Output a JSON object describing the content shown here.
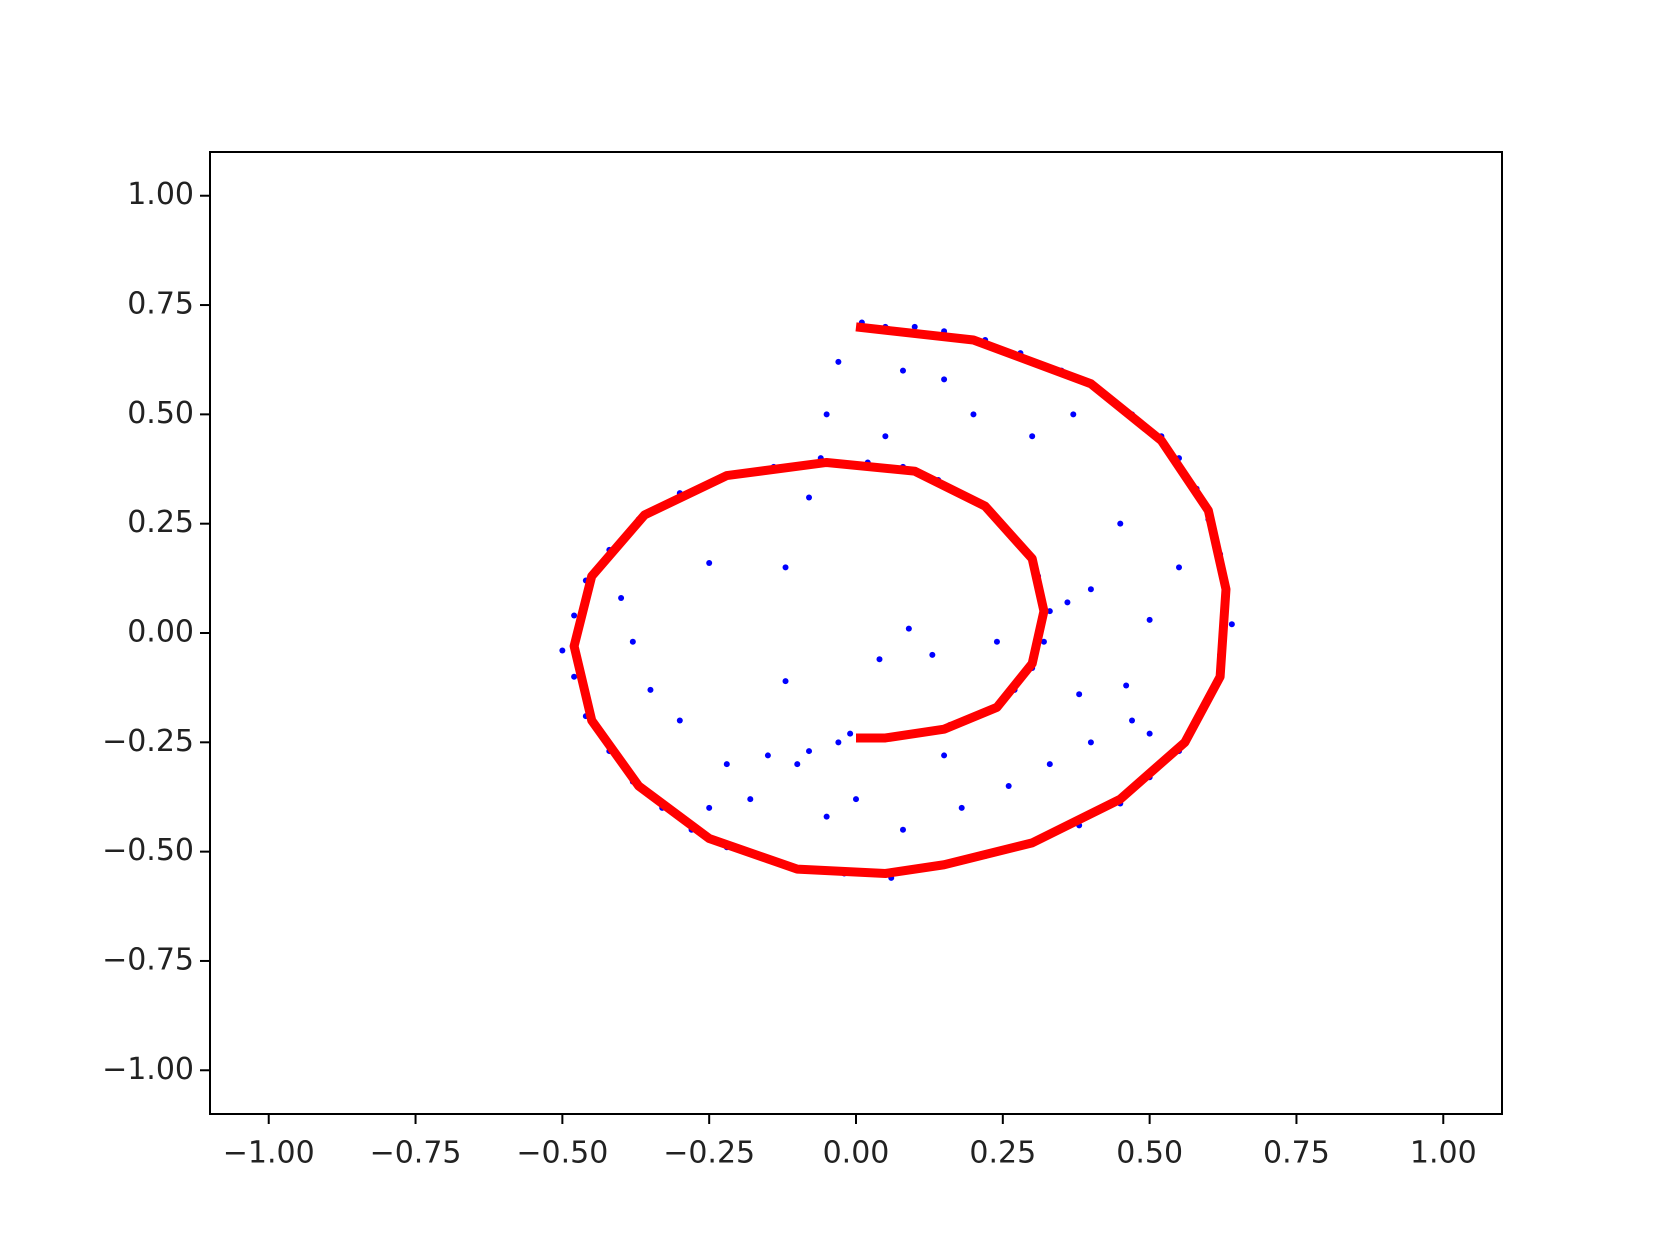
{
  "chart_data": {
    "type": "scatter",
    "xlim": [
      -1.1,
      1.1
    ],
    "ylim": [
      -1.1,
      1.1
    ],
    "xticks": [
      {
        "value": -1,
        "label": "−1.00"
      },
      {
        "value": -0.75,
        "label": "−0.75"
      },
      {
        "value": -0.5,
        "label": "−0.50"
      },
      {
        "value": -0.25,
        "label": "−0.25"
      },
      {
        "value": 0,
        "label": "0.00"
      },
      {
        "value": 0.25,
        "label": "0.25"
      },
      {
        "value": 0.5,
        "label": "0.50"
      },
      {
        "value": 0.75,
        "label": "0.75"
      },
      {
        "value": 1,
        "label": "1.00"
      }
    ],
    "yticks": [
      {
        "value": -1,
        "label": "−1.00"
      },
      {
        "value": -0.75,
        "label": "−0.75"
      },
      {
        "value": -0.5,
        "label": "−0.50"
      },
      {
        "value": -0.25,
        "label": "−0.25"
      },
      {
        "value": 0,
        "label": "0.00"
      },
      {
        "value": 0.25,
        "label": "0.25"
      },
      {
        "value": 0.5,
        "label": "0.50"
      },
      {
        "value": 0.75,
        "label": "0.75"
      },
      {
        "value": 1,
        "label": "1.00"
      }
    ],
    "series": [
      {
        "type": "scatter",
        "color": "#0000ff",
        "x": [
          0.01,
          0.05,
          0.1,
          0.15,
          0.22,
          0.28,
          0.35,
          0.42,
          0.47,
          0.52,
          0.55,
          0.58,
          0.6,
          0.62,
          0.63,
          0.64,
          0.62,
          0.61,
          0.58,
          0.55,
          0.5,
          0.45,
          0.38,
          0.3,
          0.22,
          0.14,
          0.06,
          -0.02,
          -0.08,
          -0.15,
          -0.22,
          -0.28,
          -0.33,
          -0.38,
          -0.42,
          -0.46,
          -0.48,
          -0.5,
          -0.48,
          -0.46,
          -0.42,
          -0.37,
          -0.3,
          -0.22,
          -0.14,
          -0.06,
          0.02,
          0.08,
          0.14,
          0.19,
          0.24,
          0.28,
          0.31,
          0.33,
          0.32,
          0.3,
          0.27,
          0.22,
          0.16,
          0.1,
          0.03,
          -0.01,
          -0.03,
          -0.05,
          0.05,
          0.08,
          0.15,
          0.2,
          0.3,
          0.37,
          0.45,
          0.4,
          0.5,
          0.55,
          0.46,
          0.4,
          0.33,
          0.26,
          0.18,
          0.08,
          0.0,
          -0.05,
          -0.1,
          -0.15,
          -0.22,
          -0.3,
          -0.25,
          -0.12,
          -0.08,
          0.09,
          0.13,
          0.04,
          -0.12,
          -0.38,
          -0.4,
          -0.35,
          0.24,
          0.38,
          0.36,
          -0.03,
          -0.08,
          -0.18,
          -0.25,
          0.15,
          0.47,
          0.5
        ],
        "y": [
          0.71,
          0.7,
          0.7,
          0.69,
          0.67,
          0.64,
          0.6,
          0.55,
          0.5,
          0.45,
          0.4,
          0.33,
          0.26,
          0.18,
          0.1,
          0.02,
          -0.05,
          -0.12,
          -0.2,
          -0.27,
          -0.33,
          -0.39,
          -0.44,
          -0.48,
          -0.51,
          -0.53,
          -0.56,
          -0.55,
          -0.54,
          -0.52,
          -0.49,
          -0.45,
          -0.4,
          -0.34,
          -0.27,
          -0.19,
          -0.1,
          -0.04,
          0.04,
          0.12,
          0.19,
          0.26,
          0.32,
          0.36,
          0.38,
          0.4,
          0.39,
          0.38,
          0.35,
          0.31,
          0.26,
          0.2,
          0.13,
          0.05,
          -0.02,
          -0.08,
          -0.13,
          -0.18,
          -0.21,
          -0.23,
          -0.24,
          -0.23,
          0.62,
          0.5,
          0.45,
          0.6,
          0.58,
          0.5,
          0.45,
          0.5,
          0.25,
          0.1,
          0.03,
          0.15,
          -0.12,
          -0.25,
          -0.3,
          -0.35,
          -0.4,
          -0.45,
          -0.38,
          -0.42,
          -0.3,
          -0.28,
          -0.3,
          -0.2,
          0.16,
          0.15,
          0.31,
          0.01,
          -0.05,
          -0.06,
          -0.11,
          -0.02,
          0.08,
          -0.13,
          -0.02,
          -0.14,
          0.07,
          -0.25,
          -0.27,
          -0.38,
          -0.4,
          -0.28,
          -0.2,
          -0.23
        ]
      },
      {
        "type": "line",
        "color": "#ff0000",
        "x": [
          0,
          0.2,
          0.4,
          0.52,
          0.6,
          0.63,
          0.62,
          0.56,
          0.45,
          0.3,
          0.15,
          0.05,
          -0.1,
          -0.25,
          -0.37,
          -0.45,
          -0.48,
          -0.45,
          -0.36,
          -0.22,
          -0.05,
          0.1,
          0.22,
          0.3,
          0.32,
          0.3,
          0.24,
          0.15,
          0.05,
          0
        ],
        "y": [
          0.7,
          0.67,
          0.57,
          0.44,
          0.28,
          0.1,
          -0.1,
          -0.25,
          -0.38,
          -0.48,
          -0.53,
          -0.55,
          -0.54,
          -0.47,
          -0.35,
          -0.2,
          -0.03,
          0.13,
          0.27,
          0.36,
          0.39,
          0.37,
          0.29,
          0.17,
          0.05,
          -0.07,
          -0.17,
          -0.22,
          -0.24,
          -0.24
        ]
      }
    ]
  }
}
